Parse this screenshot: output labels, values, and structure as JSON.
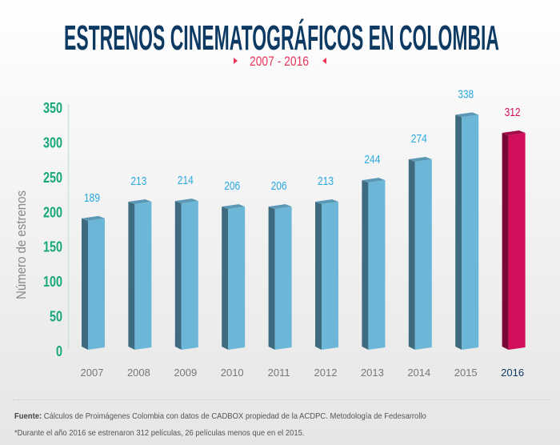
{
  "chart_data": {
    "type": "bar",
    "title": "ESTRENOS CINEMATOGRÁFICOS EN COLOMBIA",
    "subtitle": "2007 - 2016",
    "xlabel": "",
    "ylabel": "Número de estrenos",
    "ylim": [
      0,
      350
    ],
    "yticks": [
      "0",
      "50",
      "100",
      "150",
      "200",
      "250",
      "300",
      "350"
    ],
    "categories": [
      "2007",
      "2008",
      "2009",
      "2010",
      "2011",
      "2012",
      "2013",
      "2014",
      "2015",
      "2016"
    ],
    "values": [
      189,
      213,
      214,
      206,
      206,
      213,
      244,
      274,
      338,
      312
    ],
    "value_labels": [
      "189",
      "213",
      "214",
      "206",
      "206",
      "213",
      "244",
      "274",
      "338",
      "312"
    ],
    "highlight_index": 9,
    "grid": false
  },
  "colors": {
    "title": "#0d3a63",
    "subtitle": "#e8365d",
    "tick": "#16a77a",
    "bar_front": "#6cb7d8",
    "bar_side": "#3f6b80",
    "bar_top": "#5a98b5",
    "label": "#29a9e0",
    "highlight_front": "#d10f5c",
    "highlight_side": "#7a0836",
    "highlight_top": "#a00c48",
    "highlight_label": "#d10f5c",
    "highlight_year": "#0d3a63"
  },
  "footer": {
    "source_label": "Fuente:",
    "source_text": " Cálculos de Proimágenes Colombia con datos de CADBOX propiedad de la ACDPC. Metodología de Fedesarrollo",
    "note": "*Durante el año 2016 se estrenaron 312 películas, 26 películas menos que en el 2015."
  }
}
